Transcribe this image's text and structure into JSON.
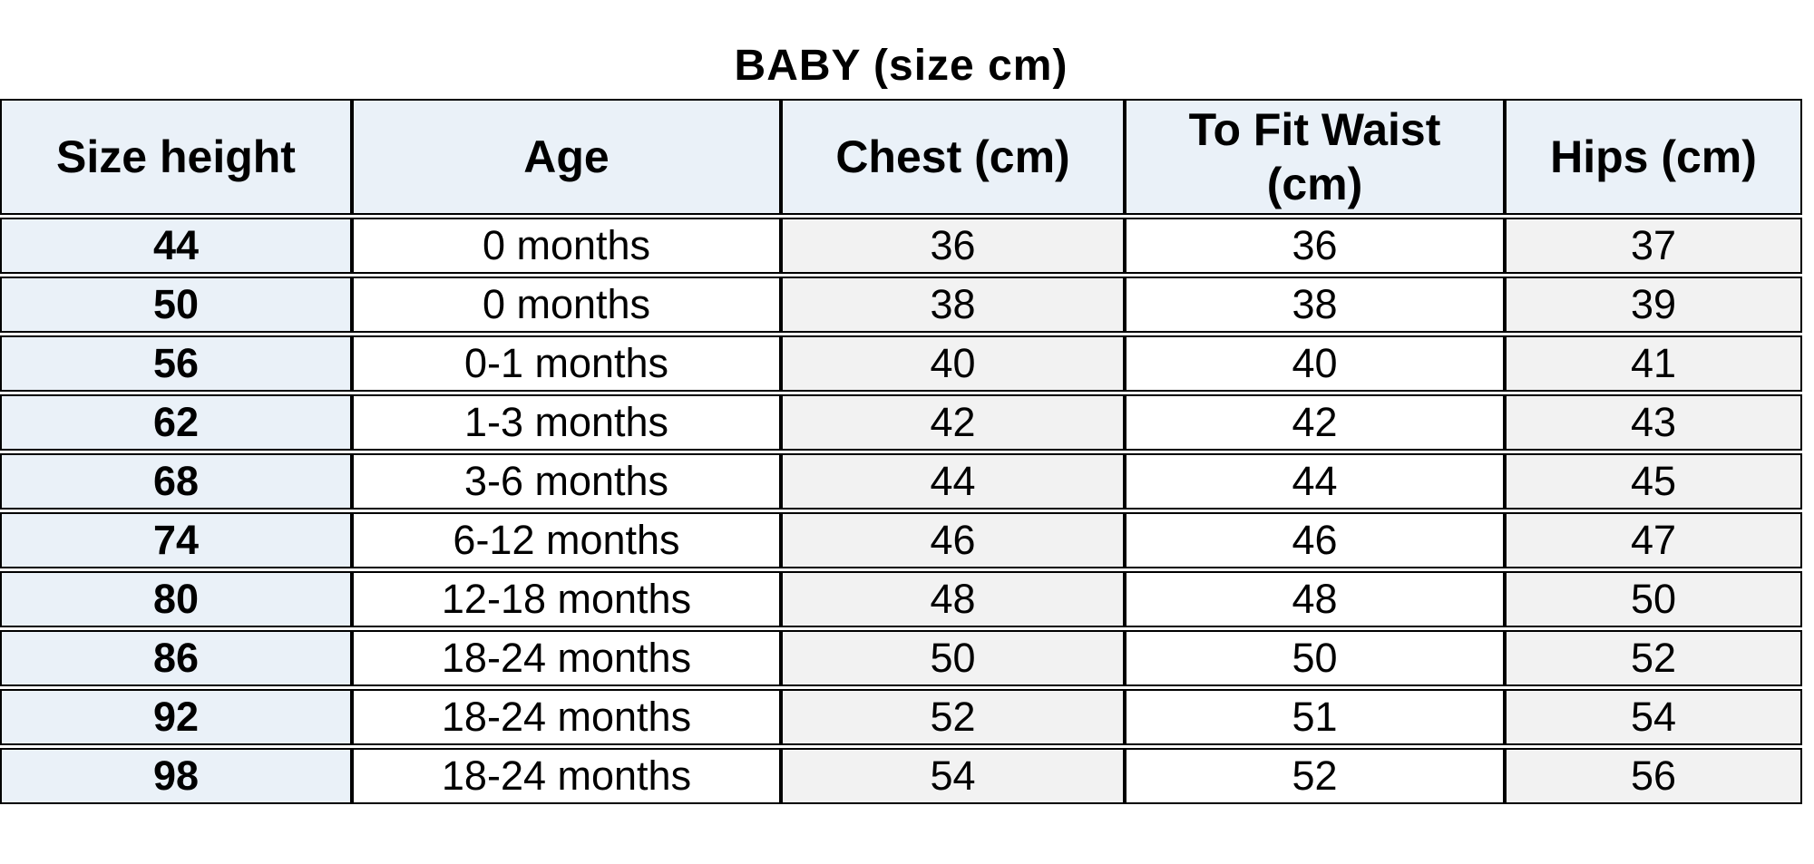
{
  "title": "BABY (size cm)",
  "colors": {
    "header_bg": "#eaf1f8",
    "size_col_bg": "#eaf1f8",
    "shaded_col_bg": "#f2f2f2",
    "plain_col_bg": "#ffffff",
    "border_color": "#000000",
    "text_color": "#000000"
  },
  "table": {
    "columns": [
      {
        "label": "Size height"
      },
      {
        "label": "Age"
      },
      {
        "label": "Chest (cm)"
      },
      {
        "label": "To Fit Waist\n(cm)"
      },
      {
        "label": "Hips (cm)"
      }
    ],
    "rows": [
      {
        "size": "44",
        "age": "0 months",
        "chest": "36",
        "waist": "36",
        "hips": "37"
      },
      {
        "size": "50",
        "age": "0 months",
        "chest": "38",
        "waist": "38",
        "hips": "39"
      },
      {
        "size": "56",
        "age": "0-1 months",
        "chest": "40",
        "waist": "40",
        "hips": "41"
      },
      {
        "size": "62",
        "age": "1-3 months",
        "chest": "42",
        "waist": "42",
        "hips": "43"
      },
      {
        "size": "68",
        "age": "3-6 months",
        "chest": "44",
        "waist": "44",
        "hips": "45"
      },
      {
        "size": "74",
        "age": "6-12 months",
        "chest": "46",
        "waist": "46",
        "hips": "47"
      },
      {
        "size": "80",
        "age": "12-18 months",
        "chest": "48",
        "waist": "48",
        "hips": "50"
      },
      {
        "size": "86",
        "age": "18-24 months",
        "chest": "50",
        "waist": "50",
        "hips": "52"
      },
      {
        "size": "92",
        "age": "18-24 months",
        "chest": "52",
        "waist": "51",
        "hips": "54"
      },
      {
        "size": "98",
        "age": "18-24 months",
        "chest": "54",
        "waist": "52",
        "hips": "56"
      }
    ]
  }
}
